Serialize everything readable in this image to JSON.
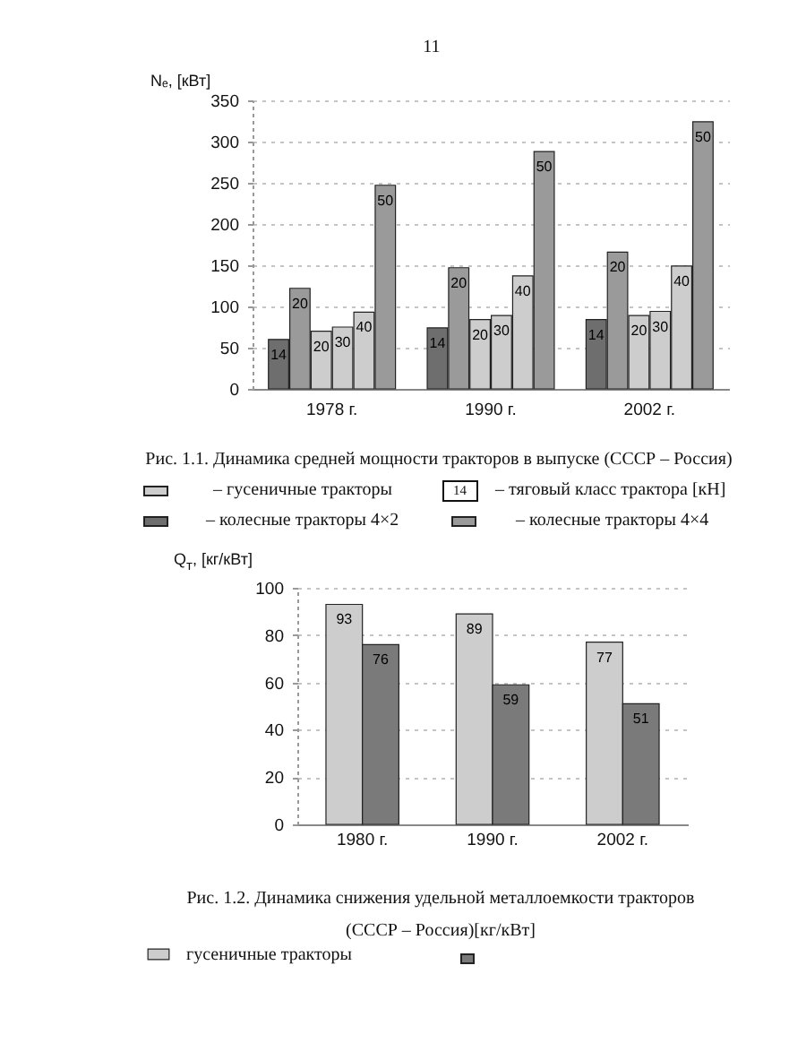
{
  "chart_data": [
    {
      "type": "bar",
      "title": "Рис. 1.1. Динамика средней мощности тракторов в выпуске (СССР – Россия)",
      "ylabel": "Nₑ, [кВт]",
      "categories": [
        "1978 г.",
        "1990 г.",
        "2002 г."
      ],
      "series": [
        {
          "name": "14",
          "color": "#6e6e6e",
          "values": [
            60,
            74,
            84
          ]
        },
        {
          "name": "20",
          "color": "#9a9a9a",
          "values": [
            122,
            147,
            166
          ]
        },
        {
          "name": "20",
          "color": "#cdcdcd",
          "values": [
            70,
            84,
            89
          ]
        },
        {
          "name": "30",
          "color": "#cdcdcd",
          "values": [
            75,
            89,
            94
          ]
        },
        {
          "name": "40",
          "color": "#cdcdcd",
          "values": [
            93,
            137,
            149
          ]
        },
        {
          "name": "50",
          "color": "#9a9a9a",
          "values": [
            247,
            288,
            324
          ]
        }
      ],
      "ylim": [
        0,
        350
      ],
      "yticks": [
        0,
        50,
        100,
        150,
        200,
        250,
        300,
        350
      ],
      "grid": "y",
      "annotations": [
        "11",
        "– гусеничные тракторы",
        "14 – тяговый класс трактора [кН]",
        "– колесные тракторы 4×2",
        "– колесные тракторы 4×4"
      ]
    },
    {
      "type": "bar",
      "title": "Рис. 1.2. Динамика снижения удельной металлоемкости тракторов (СССР – Россия)[кг/кВт]",
      "ylabel": "Q$_{т}$, [кг/кВт]",
      "categories": [
        "1980 г.",
        "1990 г.",
        "2002 г."
      ],
      "series": [
        {
          "name": "гусеничные тракторы",
          "color": "#cdcdcd",
          "values": [
            93,
            89,
            77
          ]
        },
        {
          "color": "#7a7a7a",
          "values": [
            76,
            59,
            51
          ]
        }
      ],
      "ylim": [
        0,
        100
      ],
      "yticks": [
        0,
        20,
        40,
        60,
        80,
        100
      ],
      "grid": "y",
      "data_labels": true,
      "legend": "bottom"
    }
  ]
}
